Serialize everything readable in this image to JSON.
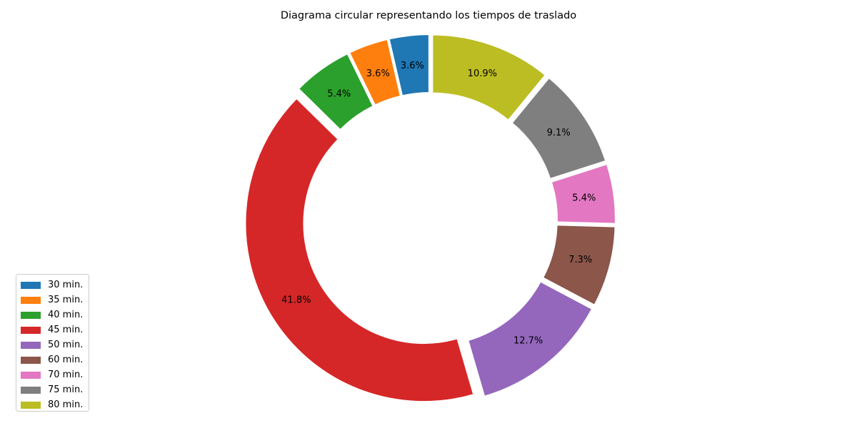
{
  "chart_data": {
    "type": "pie",
    "variant": "donut",
    "title": "Diagrama circular representando los tiempos de traslado",
    "categories": [
      "30 min.",
      "35 min.",
      "40 min.",
      "45 min.",
      "50 min.",
      "60 min.",
      "70 min.",
      "75 min.",
      "80 min."
    ],
    "values": [
      3.6,
      3.6,
      5.4,
      41.8,
      12.7,
      7.3,
      5.4,
      9.1,
      10.9
    ],
    "labels": [
      "3.6%",
      "3.6%",
      "5.4%",
      "41.8%",
      "12.7%",
      "7.3%",
      "5.4%",
      "9.1%",
      "10.9%"
    ],
    "colors": [
      "#1f77b4",
      "#ff7f0e",
      "#2ca02c",
      "#d62728",
      "#9467bd",
      "#8c564b",
      "#e377c2",
      "#7f7f7f",
      "#bcbd22"
    ],
    "exploded": true,
    "start_angle_deg": 90,
    "direction": "counterclockwise",
    "legend_position": "lower-left",
    "grid": false
  }
}
